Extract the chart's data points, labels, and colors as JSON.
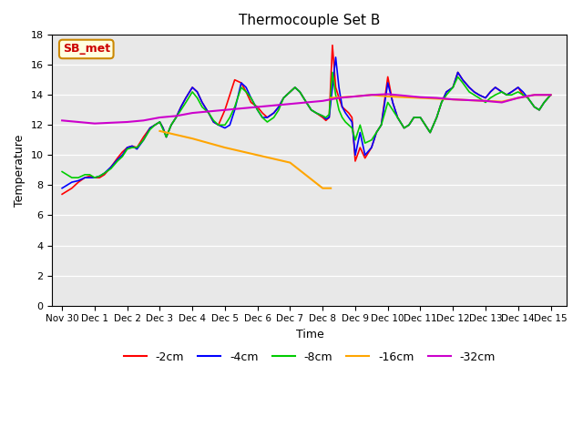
{
  "title": "Thermocouple Set B",
  "xlabel": "Time",
  "ylabel": "Temperature",
  "annotation_label": "SB_met",
  "ylim": [
    0,
    18
  ],
  "yticks": [
    0,
    2,
    4,
    6,
    8,
    10,
    12,
    14,
    16,
    18
  ],
  "legend_labels": [
    "-2cm",
    "-4cm",
    "-8cm",
    "-16cm",
    "-32cm"
  ],
  "legend_colors": [
    "#ff0000",
    "#0000ff",
    "#00cc00",
    "#ffa500",
    "#cc00cc"
  ],
  "bg_color": "#e8e8e8",
  "xtick_positions": [
    0,
    1,
    2,
    3,
    4,
    5,
    6,
    7,
    8,
    9,
    10,
    11,
    12,
    13,
    14,
    15
  ],
  "xtick_labels": [
    "Nov 30",
    "Dec 1",
    "Dec 2",
    "Dec 3",
    "Dec 4",
    "Dec 5",
    "Dec 6",
    "Dec 7",
    "Dec 8",
    "Dec 9",
    "Dec 10",
    "Dec 11",
    "Dec 12",
    "Dec 13",
    "Dec 14",
    "Dec 15"
  ],
  "cm_neg2_x": [
    0,
    0.15,
    0.3,
    0.5,
    0.7,
    0.85,
    1.0,
    1.15,
    1.3,
    1.5,
    1.7,
    1.85,
    2.0,
    2.15,
    2.3,
    2.5,
    2.7,
    2.85,
    3.0,
    3.1,
    3.2,
    3.35,
    3.5,
    3.65,
    3.8,
    4.0,
    4.15,
    4.3,
    4.5,
    4.65,
    4.8,
    5.0,
    5.15,
    5.3,
    5.5,
    5.65,
    5.8,
    6.0,
    6.15,
    6.3,
    6.5,
    6.65,
    6.8,
    7.0,
    7.15,
    7.3,
    7.5,
    7.65,
    7.8,
    8.0,
    8.1,
    8.2,
    8.3,
    8.4,
    8.5,
    8.6,
    8.7,
    8.8,
    8.9,
    9.0,
    9.15,
    9.3,
    9.5,
    9.65,
    9.8,
    10.0,
    10.15,
    10.3,
    10.5,
    10.65,
    10.8,
    11.0,
    11.15,
    11.3,
    11.5,
    11.65,
    11.8,
    12.0,
    12.15,
    12.3,
    12.5,
    12.65,
    12.8,
    13.0,
    13.15,
    13.3,
    13.5,
    13.65,
    13.8,
    14.0,
    14.15,
    14.3,
    14.5,
    14.65,
    14.8,
    15.0
  ],
  "cm_neg2_y": [
    7.4,
    7.6,
    7.8,
    8.2,
    8.5,
    8.6,
    8.5,
    8.5,
    8.7,
    9.2,
    9.8,
    10.2,
    10.5,
    10.6,
    10.5,
    11.2,
    11.8,
    12.0,
    12.2,
    11.8,
    11.2,
    12.0,
    12.5,
    13.2,
    13.8,
    14.5,
    14.2,
    13.5,
    12.8,
    12.2,
    12.0,
    13.0,
    14.0,
    15.0,
    14.8,
    14.2,
    13.5,
    13.2,
    12.8,
    12.5,
    12.8,
    13.2,
    13.8,
    14.2,
    14.5,
    14.2,
    13.5,
    13.0,
    12.8,
    12.5,
    12.3,
    12.5,
    17.3,
    14.5,
    13.8,
    13.2,
    13.0,
    12.8,
    12.5,
    9.6,
    10.5,
    9.8,
    10.5,
    11.5,
    12.0,
    15.2,
    13.5,
    12.5,
    11.8,
    12.0,
    12.5,
    12.5,
    12.0,
    11.5,
    12.5,
    13.5,
    14.2,
    14.5,
    15.5,
    15.0,
    14.5,
    14.2,
    14.0,
    13.8,
    14.2,
    14.5,
    14.2,
    14.0,
    14.2,
    14.5,
    14.0,
    13.8,
    13.2,
    13.0,
    13.5,
    14.0
  ],
  "cm_neg4_x": [
    0,
    0.15,
    0.3,
    0.5,
    0.7,
    0.85,
    1.0,
    1.15,
    1.3,
    1.5,
    1.7,
    1.85,
    2.0,
    2.15,
    2.3,
    2.5,
    2.7,
    2.85,
    3.0,
    3.1,
    3.2,
    3.35,
    3.5,
    3.65,
    3.8,
    4.0,
    4.15,
    4.3,
    4.5,
    4.65,
    4.8,
    5.0,
    5.15,
    5.3,
    5.5,
    5.65,
    5.8,
    6.0,
    6.15,
    6.3,
    6.5,
    6.65,
    6.8,
    7.0,
    7.15,
    7.3,
    7.5,
    7.65,
    7.8,
    8.0,
    8.1,
    8.2,
    8.3,
    8.4,
    8.5,
    8.6,
    8.7,
    8.8,
    8.9,
    9.0,
    9.15,
    9.3,
    9.5,
    9.65,
    9.8,
    10.0,
    10.15,
    10.3,
    10.5,
    10.65,
    10.8,
    11.0,
    11.15,
    11.3,
    11.5,
    11.65,
    11.8,
    12.0,
    12.15,
    12.3,
    12.5,
    12.65,
    12.8,
    13.0,
    13.15,
    13.3,
    13.5,
    13.65,
    13.8,
    14.0,
    14.15,
    14.3,
    14.5,
    14.65,
    14.8,
    15.0
  ],
  "cm_neg4_y": [
    7.8,
    8.0,
    8.2,
    8.3,
    8.5,
    8.5,
    8.5,
    8.6,
    8.8,
    9.2,
    9.7,
    10.0,
    10.5,
    10.6,
    10.4,
    11.0,
    11.8,
    12.0,
    12.2,
    11.8,
    11.2,
    12.0,
    12.5,
    13.2,
    13.8,
    14.5,
    14.2,
    13.5,
    12.8,
    12.2,
    12.0,
    11.8,
    12.0,
    13.0,
    14.8,
    14.5,
    13.8,
    13.0,
    12.5,
    12.5,
    12.8,
    13.2,
    13.8,
    14.2,
    14.5,
    14.2,
    13.5,
    13.0,
    12.8,
    12.6,
    12.4,
    12.5,
    14.5,
    16.5,
    14.5,
    13.2,
    12.8,
    12.5,
    12.2,
    10.0,
    11.5,
    10.0,
    10.5,
    11.5,
    12.0,
    14.8,
    13.5,
    12.5,
    11.8,
    12.0,
    12.5,
    12.5,
    12.0,
    11.5,
    12.5,
    13.5,
    14.2,
    14.5,
    15.5,
    15.0,
    14.5,
    14.2,
    14.0,
    13.8,
    14.2,
    14.5,
    14.2,
    14.0,
    14.2,
    14.5,
    14.2,
    13.8,
    13.2,
    13.0,
    13.5,
    14.0
  ],
  "cm_neg8_x": [
    0,
    0.15,
    0.3,
    0.5,
    0.7,
    0.85,
    1.0,
    1.15,
    1.3,
    1.5,
    1.7,
    1.85,
    2.0,
    2.15,
    2.3,
    2.5,
    2.7,
    2.85,
    3.0,
    3.1,
    3.2,
    3.35,
    3.5,
    3.65,
    3.8,
    4.0,
    4.15,
    4.3,
    4.5,
    4.65,
    4.8,
    5.0,
    5.15,
    5.3,
    5.5,
    5.65,
    5.8,
    6.0,
    6.15,
    6.3,
    6.5,
    6.65,
    6.8,
    7.0,
    7.15,
    7.3,
    7.5,
    7.65,
    7.8,
    8.0,
    8.1,
    8.2,
    8.3,
    8.4,
    8.5,
    8.6,
    8.7,
    8.8,
    8.9,
    9.0,
    9.15,
    9.3,
    9.5,
    9.65,
    9.8,
    10.0,
    10.15,
    10.3,
    10.5,
    10.65,
    10.8,
    11.0,
    11.15,
    11.3,
    11.5,
    11.65,
    11.8,
    12.0,
    12.15,
    12.3,
    12.5,
    12.65,
    12.8,
    13.0,
    13.15,
    13.3,
    13.5,
    13.65,
    13.8,
    14.0,
    14.15,
    14.3,
    14.5,
    14.65,
    14.8,
    15.0
  ],
  "cm_neg8_y": [
    8.9,
    8.7,
    8.5,
    8.5,
    8.7,
    8.7,
    8.5,
    8.6,
    8.8,
    9.1,
    9.6,
    9.9,
    10.4,
    10.5,
    10.5,
    11.0,
    11.7,
    12.0,
    12.2,
    11.7,
    11.2,
    12.0,
    12.5,
    13.0,
    13.5,
    14.2,
    13.8,
    13.2,
    12.8,
    12.3,
    12.0,
    12.0,
    12.5,
    13.2,
    14.5,
    14.2,
    13.8,
    13.0,
    12.5,
    12.2,
    12.5,
    13.0,
    13.8,
    14.2,
    14.5,
    14.2,
    13.5,
    13.0,
    12.8,
    12.6,
    12.5,
    12.7,
    15.5,
    14.0,
    13.0,
    12.5,
    12.2,
    12.0,
    11.8,
    11.0,
    12.0,
    10.8,
    11.0,
    11.5,
    12.0,
    13.5,
    13.0,
    12.5,
    11.8,
    12.0,
    12.5,
    12.5,
    12.0,
    11.5,
    12.5,
    13.5,
    14.0,
    14.5,
    15.2,
    14.8,
    14.2,
    14.0,
    13.8,
    13.5,
    13.8,
    14.0,
    14.2,
    14.0,
    14.0,
    14.2,
    14.0,
    13.8,
    13.2,
    13.0,
    13.5,
    14.0
  ],
  "cm_neg16_seg1_x": [
    3.0,
    4.0,
    5.0,
    6.0,
    7.0,
    8.0,
    8.25
  ],
  "cm_neg16_seg1_y": [
    11.6,
    11.1,
    10.5,
    10.0,
    9.5,
    7.8,
    7.8
  ],
  "cm_neg16_seg2_x": [
    8.25,
    9.0,
    9.5,
    10.0,
    10.5,
    11.0,
    11.5,
    12.0,
    12.5,
    13.0,
    13.5,
    14.0,
    14.5,
    15.0
  ],
  "cm_neg16_seg2_y": [
    13.8,
    13.9,
    14.0,
    13.9,
    13.85,
    13.8,
    13.75,
    13.7,
    13.65,
    13.6,
    13.55,
    13.8,
    14.0,
    14.0
  ],
  "cm_neg32_x": [
    0,
    0.5,
    1.0,
    1.5,
    2.0,
    2.5,
    3.0,
    3.5,
    4.0,
    4.5,
    5.0,
    5.5,
    6.0,
    6.5,
    7.0,
    7.5,
    8.0,
    8.5,
    9.0,
    9.5,
    10.0,
    10.5,
    11.0,
    11.5,
    12.0,
    12.5,
    13.0,
    13.5,
    14.0,
    14.5,
    15.0
  ],
  "cm_neg32_y": [
    12.3,
    12.2,
    12.1,
    12.15,
    12.2,
    12.3,
    12.5,
    12.6,
    12.8,
    12.9,
    13.0,
    13.1,
    13.2,
    13.3,
    13.4,
    13.5,
    13.6,
    13.8,
    13.9,
    14.0,
    14.05,
    13.95,
    13.85,
    13.8,
    13.7,
    13.65,
    13.6,
    13.5,
    13.8,
    14.0,
    14.0
  ]
}
